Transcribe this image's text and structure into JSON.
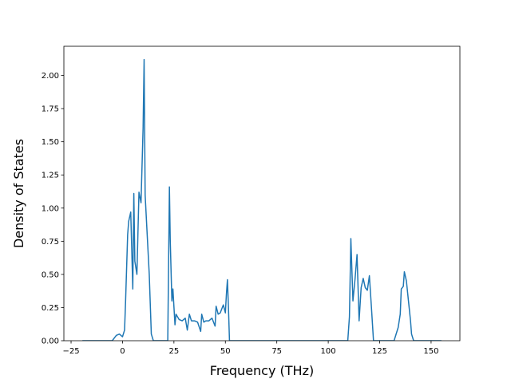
{
  "chart_data": {
    "type": "line",
    "title": "",
    "xlabel": "Frequency (THz)",
    "ylabel": "Density of States",
    "xlim": [
      -28.5,
      164
    ],
    "ylim": [
      0,
      2.22
    ],
    "xticks": [
      -25,
      0,
      25,
      50,
      75,
      100,
      125,
      150
    ],
    "xtick_labels": [
      "−25",
      "0",
      "25",
      "50",
      "75",
      "100",
      "125",
      "150"
    ],
    "yticks": [
      0,
      0.25,
      0.5,
      0.75,
      1.0,
      1.25,
      1.5,
      1.75,
      2.0
    ],
    "ytick_labels": [
      "0.00",
      "0.25",
      "0.50",
      "0.75",
      "1.00",
      "1.25",
      "1.50",
      "1.75",
      "2.00"
    ],
    "grid": false,
    "color": "#1f77b4",
    "series": [
      {
        "x": [
          -19.5,
          -5,
          -3,
          -1.5,
          0,
          1,
          1.5,
          2.5,
          3,
          4,
          5,
          5.5,
          6,
          7,
          8,
          9,
          10,
          10.5,
          11,
          12,
          13,
          14,
          15,
          16,
          20,
          22,
          22.8,
          23.2,
          24,
          24.5,
          25.5,
          26,
          27.5,
          29,
          30.5,
          31.5,
          32.5,
          33.5,
          35,
          36.5,
          38,
          38.5,
          39.5,
          40.5,
          42,
          43.5,
          45,
          45.5,
          46.5,
          47.5,
          49,
          50,
          50.5,
          51,
          51.5,
          52,
          55,
          80,
          108,
          109.5,
          110.3,
          111,
          112,
          113,
          114,
          115,
          116,
          117,
          118,
          119,
          120,
          121,
          122,
          131,
          132,
          134,
          135,
          135.5,
          136.5,
          137,
          138,
          139,
          140,
          140.5,
          141.5,
          145,
          155
        ],
        "y": [
          0,
          0,
          0.04,
          0.05,
          0.03,
          0.08,
          0.3,
          0.8,
          0.9,
          0.97,
          0.39,
          1.11,
          0.6,
          0.5,
          1.12,
          1.04,
          1.6,
          2.12,
          1.1,
          0.8,
          0.5,
          0.05,
          0,
          0,
          0,
          0,
          1.16,
          0.76,
          0.3,
          0.39,
          0.12,
          0.2,
          0.16,
          0.15,
          0.17,
          0.08,
          0.2,
          0.15,
          0.15,
          0.14,
          0.07,
          0.2,
          0.14,
          0.15,
          0.15,
          0.17,
          0.11,
          0.26,
          0.2,
          0.21,
          0.27,
          0.21,
          0.35,
          0.46,
          0.25,
          0,
          0,
          0,
          0,
          0,
          0.18,
          0.77,
          0.3,
          0.46,
          0.65,
          0.15,
          0.4,
          0.47,
          0.4,
          0.38,
          0.49,
          0.25,
          0,
          0,
          0,
          0.1,
          0.2,
          0.39,
          0.41,
          0.52,
          0.45,
          0.3,
          0.15,
          0.05,
          0,
          0,
          0
        ]
      }
    ]
  }
}
